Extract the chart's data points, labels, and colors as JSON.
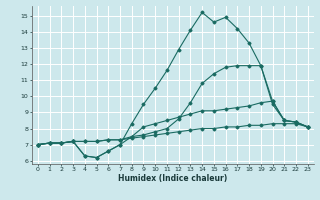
{
  "title": "",
  "xlabel": "Humidex (Indice chaleur)",
  "xlim": [
    -0.5,
    23.5
  ],
  "ylim": [
    5.8,
    15.6
  ],
  "yticks": [
    6,
    7,
    8,
    9,
    10,
    11,
    12,
    13,
    14,
    15
  ],
  "xticks": [
    0,
    1,
    2,
    3,
    4,
    5,
    6,
    7,
    8,
    9,
    10,
    11,
    12,
    13,
    14,
    15,
    16,
    17,
    18,
    19,
    20,
    21,
    22,
    23
  ],
  "bg_color": "#cde8ec",
  "grid_color": "#ffffff",
  "line_color": "#1a6b62",
  "lines": [
    {
      "x": [
        0,
        1,
        2,
        3,
        4,
        5,
        6,
        7,
        8,
        9,
        10,
        11,
        12,
        13,
        14,
        15,
        16,
        17,
        18,
        19,
        20,
        21,
        22,
        23
      ],
      "y": [
        7.0,
        7.1,
        7.1,
        7.2,
        6.3,
        6.2,
        6.6,
        7.0,
        8.3,
        9.5,
        10.5,
        11.6,
        12.9,
        14.1,
        15.2,
        14.6,
        14.9,
        14.2,
        13.3,
        11.9,
        9.7,
        8.5,
        8.4,
        8.1
      ]
    },
    {
      "x": [
        0,
        1,
        2,
        3,
        4,
        5,
        6,
        7,
        8,
        9,
        10,
        11,
        12,
        13,
        14,
        15,
        16,
        17,
        18,
        19,
        20,
        21,
        22,
        23
      ],
      "y": [
        7.0,
        7.1,
        7.1,
        7.2,
        7.2,
        7.2,
        7.3,
        7.3,
        7.5,
        7.6,
        7.8,
        8.0,
        8.6,
        9.6,
        10.8,
        11.4,
        11.8,
        11.9,
        11.9,
        11.9,
        9.5,
        8.5,
        8.4,
        8.1
      ]
    },
    {
      "x": [
        0,
        1,
        2,
        3,
        4,
        5,
        6,
        7,
        8,
        9,
        10,
        11,
        12,
        13,
        14,
        15,
        16,
        17,
        18,
        19,
        20,
        21,
        22,
        23
      ],
      "y": [
        7.0,
        7.1,
        7.1,
        7.2,
        6.3,
        6.2,
        6.6,
        7.0,
        7.5,
        8.1,
        8.3,
        8.5,
        8.7,
        8.9,
        9.1,
        9.1,
        9.2,
        9.3,
        9.4,
        9.6,
        9.7,
        8.5,
        8.4,
        8.1
      ]
    },
    {
      "x": [
        0,
        1,
        2,
        3,
        4,
        5,
        6,
        7,
        8,
        9,
        10,
        11,
        12,
        13,
        14,
        15,
        16,
        17,
        18,
        19,
        20,
        21,
        22,
        23
      ],
      "y": [
        7.0,
        7.1,
        7.1,
        7.2,
        7.2,
        7.2,
        7.3,
        7.3,
        7.4,
        7.5,
        7.6,
        7.7,
        7.8,
        7.9,
        8.0,
        8.0,
        8.1,
        8.1,
        8.2,
        8.2,
        8.3,
        8.3,
        8.3,
        8.1
      ]
    }
  ]
}
